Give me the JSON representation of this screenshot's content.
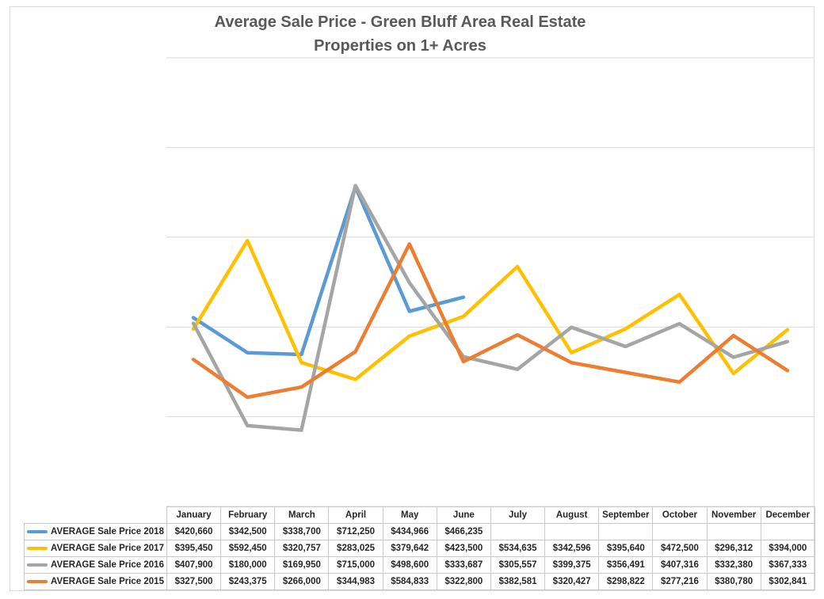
{
  "chart_data": {
    "type": "line",
    "title": "Average Sale Price - Green Bluff Area Real Estate",
    "subtitle": "Properties on 1+ Acres",
    "categories": [
      "January",
      "February",
      "March",
      "April",
      "May",
      "June",
      "July",
      "August",
      "September",
      "October",
      "November",
      "December"
    ],
    "ylim": [
      0,
      1000000
    ],
    "grid": true,
    "legend": "data-table-below",
    "series": [
      {
        "name": "AVERAGE Sale Price 2018",
        "color": "#5b9bd5",
        "values": [
          420660,
          342500,
          338700,
          712250,
          434966,
          466235,
          null,
          null,
          null,
          null,
          null,
          null
        ],
        "labels": [
          "$420,660",
          "$342,500",
          "$338,700",
          "$712,250",
          "$434,966",
          "$466,235",
          "",
          "",
          "",
          "",
          "",
          ""
        ]
      },
      {
        "name": "AVERAGE Sale Price 2017",
        "color": "#ffc000",
        "values": [
          395450,
          592450,
          320757,
          283025,
          379642,
          423500,
          534635,
          342596,
          395640,
          472500,
          296312,
          394000
        ],
        "labels": [
          "$395,450",
          "$592,450",
          "$320,757",
          "$283,025",
          "$379,642",
          "$423,500",
          "$534,635",
          "$342,596",
          "$395,640",
          "$472,500",
          "$296,312",
          "$394,000"
        ]
      },
      {
        "name": "AVERAGE Sale Price 2016",
        "color": "#a5a5a5",
        "values": [
          407900,
          180000,
          169950,
          715000,
          498600,
          333687,
          305557,
          399375,
          356491,
          407316,
          332380,
          367333
        ],
        "labels": [
          "$407,900",
          "$180,000",
          "$169,950",
          "$715,000",
          "$498,600",
          "$333,687",
          "$305,557",
          "$399,375",
          "$356,491",
          "$407,316",
          "$332,380",
          "$367,333"
        ]
      },
      {
        "name": "AVERAGE Sale Price 2015",
        "color": "#ed7d31",
        "values": [
          327500,
          243375,
          266000,
          344983,
          584833,
          322800,
          382581,
          320427,
          298822,
          277216,
          380780,
          302841
        ],
        "labels": [
          "$327,500",
          "$243,375",
          "$266,000",
          "$344,983",
          "$584,833",
          "$322,800",
          "$382,581",
          "$320,427",
          "$298,822",
          "$277,216",
          "$380,780",
          "$302,841"
        ]
      }
    ]
  }
}
